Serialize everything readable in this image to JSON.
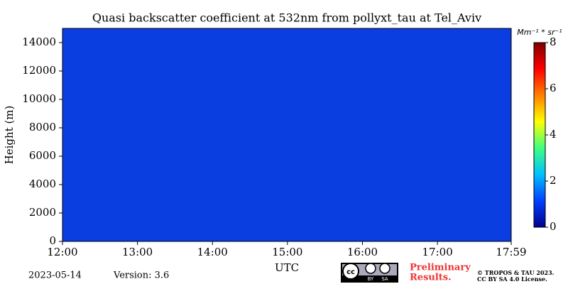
{
  "chart_data": {
    "type": "heatmap",
    "title": "Quasi backscatter coefficient at 532nm from pollyxt_tau at Tel_Aviv",
    "x_label": "UTC",
    "y_label": "Height (m)",
    "xlim": [
      0,
      359
    ],
    "xticks": [
      {
        "value": 0,
        "label": "12:00"
      },
      {
        "value": 60,
        "label": "13:00"
      },
      {
        "value": 120,
        "label": "14:00"
      },
      {
        "value": 180,
        "label": "15:00"
      },
      {
        "value": 240,
        "label": "16:00"
      },
      {
        "value": 300,
        "label": "17:00"
      },
      {
        "value": 359,
        "label": "17:59"
      }
    ],
    "ylim": [
      0,
      15000
    ],
    "yticks": [
      0,
      2000,
      4000,
      6000,
      8000,
      10000,
      12000,
      14000
    ],
    "colormap": "jet",
    "colorbar": {
      "label": "Mm⁻¹ * sr⁻¹",
      "lim": [
        0,
        8
      ],
      "ticks": [
        0,
        2,
        4,
        6,
        8
      ]
    },
    "footer": {
      "date": "2023-05-14",
      "version": "Version: 3.6",
      "notice": [
        "Preliminary",
        "Results."
      ],
      "license": [
        "© TROPOS & TAU 2023.",
        "CC BY SA 4.0 License."
      ],
      "badge": [
        "cc",
        "BY",
        "SA"
      ]
    }
  }
}
